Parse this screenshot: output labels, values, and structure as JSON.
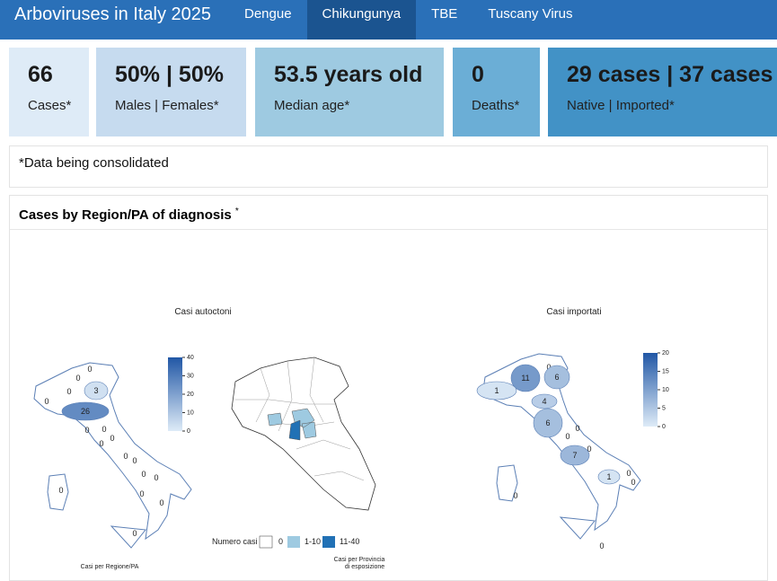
{
  "header": {
    "title": "Arboviruses in Italy 2025",
    "tabs": [
      "Dengue",
      "Chikungunya",
      "TBE",
      "Tuscany Virus"
    ]
  },
  "value_boxes": [
    {
      "value": 66,
      "label": "Cases*"
    },
    {
      "value": "50% | 50%",
      "label": "Males | Females*"
    },
    {
      "value": "53.5 years old",
      "label": "Median age*"
    },
    {
      "value": 0,
      "label": "Deaths*"
    },
    {
      "value": "29 cases | 37 cases",
      "label": "Native | Imported*"
    }
  ],
  "note": "*Data being consolidated",
  "card": {
    "title": "Cases by Region/PA of diagnosis",
    "title_mark": "*",
    "maps": [
      {
        "title": "Casi autoctoni",
        "caption": "Casi per Regione/PA",
        "colorbar_ticks": [
          0,
          10,
          20,
          30,
          40
        ],
        "region_values": [
          0,
          0,
          3,
          0,
          0,
          26,
          0,
          0,
          0,
          0,
          0,
          0,
          0,
          0,
          0,
          0,
          0,
          0
        ]
      },
      {
        "title": "Casi importati",
        "colorbar_ticks": [
          0,
          5,
          10,
          15,
          20
        ],
        "region_values": [
          0,
          11,
          6,
          1,
          4,
          6,
          0,
          0,
          0,
          7,
          1,
          0,
          0,
          0,
          0
        ]
      }
    ],
    "province_map": {
      "legend_title": "Numero casi",
      "legend": [
        "0",
        "1-10",
        "11-40"
      ],
      "caption_lines": [
        "Casi per Provincia",
        "di esposizione"
      ]
    }
  }
}
